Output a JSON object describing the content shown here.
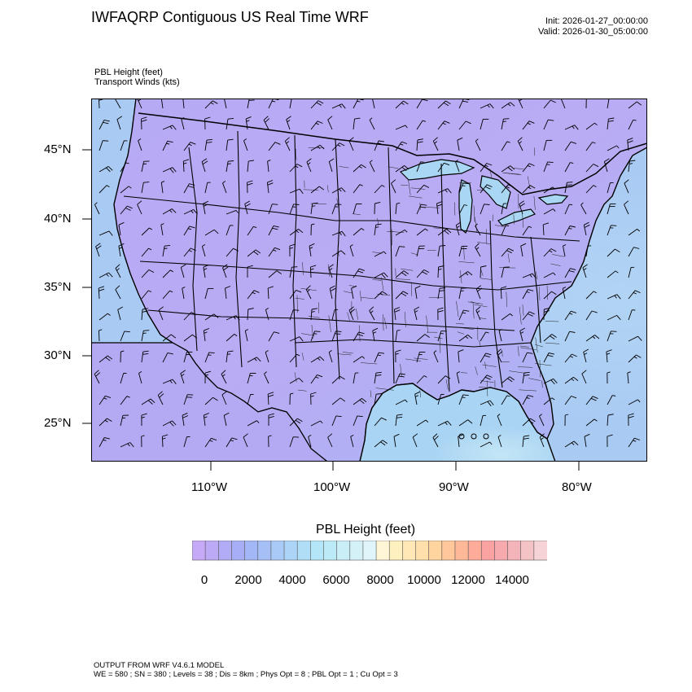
{
  "header": {
    "title": "IWFAQRP Contiguous US Real Time WRF",
    "init": "Init: 2026-01-27_00:00:00",
    "valid": "Valid: 2026-01-30_05:00:00"
  },
  "fields": {
    "primary": "PBL Height   (feet)",
    "secondary": "Transport Winds   (kts)"
  },
  "map": {
    "projection": "Lambert-like CONUS",
    "lat_labels": [
      "45°N",
      "40°N",
      "35°N",
      "30°N",
      "25°N"
    ],
    "lon_labels": [
      "110°W",
      "100°W",
      "90°W",
      "80°W"
    ],
    "colors": {
      "land_base": "#b9a9f4",
      "ocean_base": "#a9d4f3",
      "gulf_light": "#c4e6f6",
      "boundaries": "#000000"
    }
  },
  "colorbar": {
    "title": "PBL Height  (feet)",
    "labels": [
      "0",
      "2000",
      "4000",
      "6000",
      "8000",
      "10000",
      "12000",
      "14000"
    ],
    "colors": [
      "#c6a9f7",
      "#bcaaf6",
      "#b2acf6",
      "#a8aef6",
      "#a3b6f6",
      "#a6c0f6",
      "#a9caf6",
      "#acd4f6",
      "#b0def6",
      "#b3e6f6",
      "#bdeaf7",
      "#c9eef8",
      "#d4f1f8",
      "#e0f5f9",
      "#fff6d8",
      "#fff0c0",
      "#ffe8b6",
      "#ffdfaa",
      "#ffd49e",
      "#ffc79a",
      "#ffb998",
      "#ffab99",
      "#fba2a2",
      "#f6aaae",
      "#f3b5b9",
      "#f3c3c6",
      "#f6d4d6"
    ]
  },
  "footer": {
    "line1": "OUTPUT FROM WRF V4.6.1 MODEL",
    "line2": "WE = 580 ; SN = 380 ; Levels = 38 ; Dis = 8km ; Phys Opt = 8 ; PBL Opt = 1 ; Cu Opt = 3"
  }
}
